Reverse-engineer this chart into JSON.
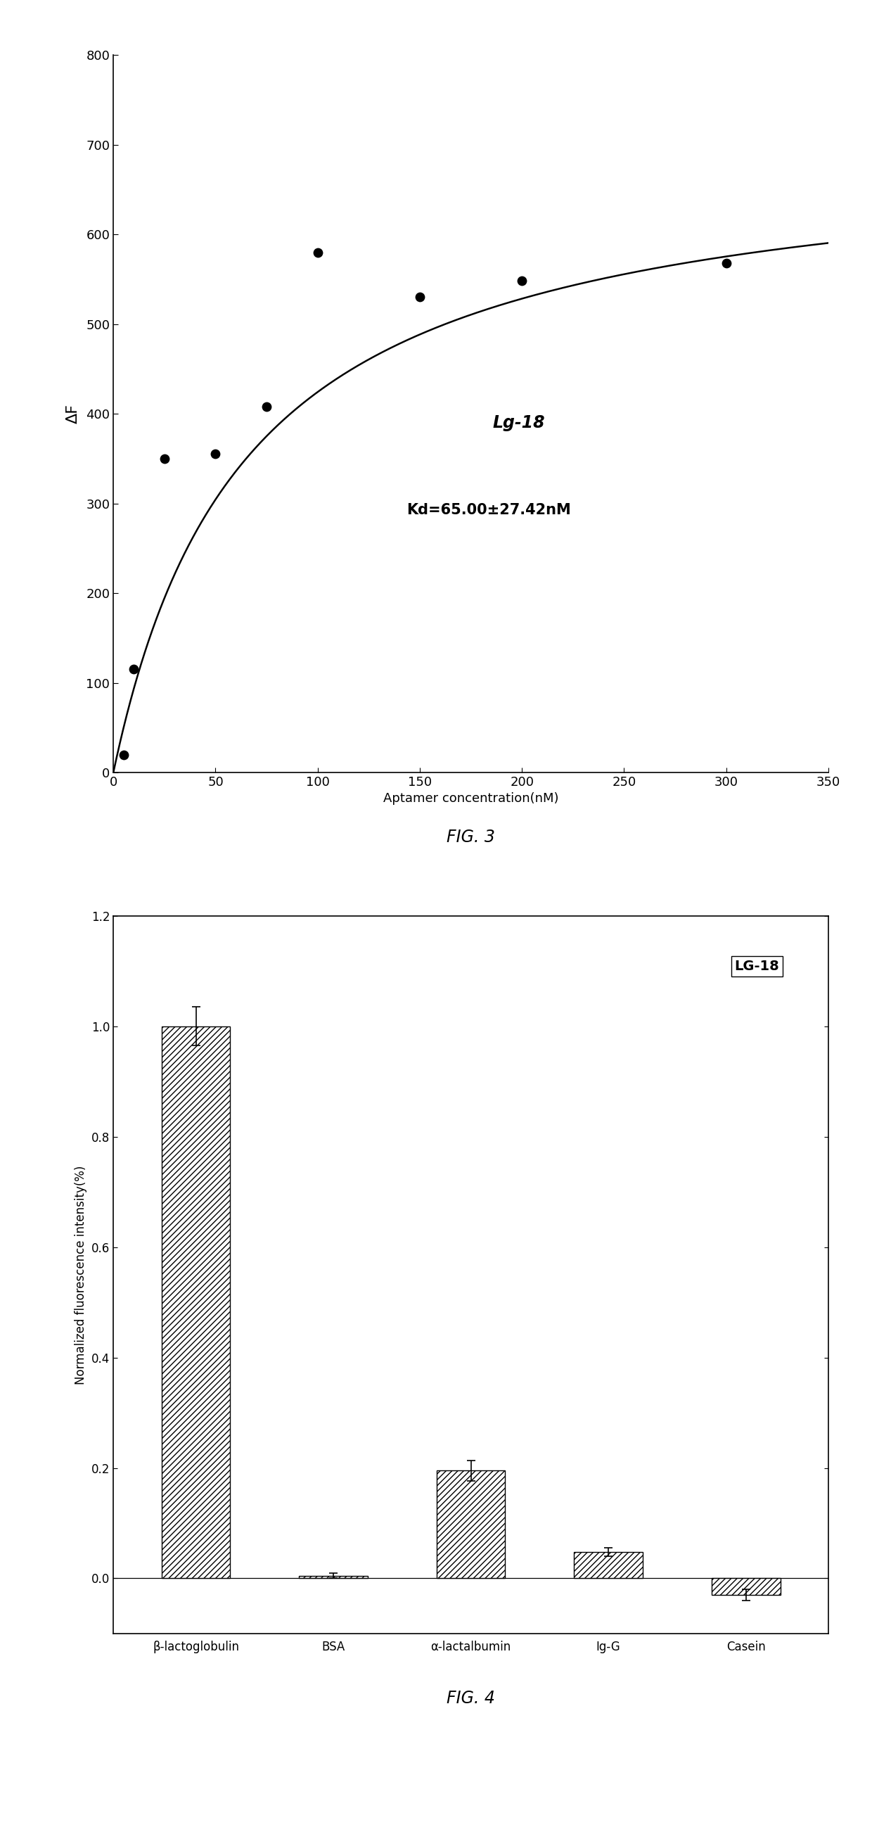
{
  "fig3": {
    "scatter_x": [
      5,
      10,
      25,
      50,
      75,
      100,
      150,
      200,
      300
    ],
    "scatter_y": [
      20,
      115,
      350,
      355,
      408,
      580,
      530,
      548,
      568
    ],
    "Kd": 65.0,
    "Fmax": 700.0,
    "xlabel": "Aptamer concentration(nM)",
    "ylabel": "ΔF",
    "xlim": [
      0,
      350
    ],
    "ylim": [
      0,
      800
    ],
    "xticks": [
      0,
      50,
      100,
      150,
      200,
      250,
      300,
      350
    ],
    "yticks": [
      0,
      100,
      200,
      300,
      400,
      500,
      600,
      700,
      800
    ],
    "label_name": "Lg-18",
    "label_kd": "Kd=65.00±27.42nM",
    "fig_label": "FIG. 3"
  },
  "fig4": {
    "categories": [
      "β-lactoglobulin",
      "BSA",
      "α-lactalbumin",
      "Ig-G",
      "Casein"
    ],
    "values": [
      1.0,
      0.005,
      0.195,
      0.048,
      -0.03
    ],
    "errors": [
      0.035,
      0.005,
      0.018,
      0.008,
      0.01
    ],
    "ylabel": "Normalized fluorescence intensity(%)",
    "ylim": [
      -0.1,
      1.2
    ],
    "yticks": [
      0.0,
      0.2,
      0.4,
      0.6,
      0.8,
      1.0,
      1.2
    ],
    "legend_label": "LG-18",
    "fig_label": "FIG. 4",
    "hatch": "////"
  },
  "background_color": "#ffffff",
  "text_color": "#000000"
}
